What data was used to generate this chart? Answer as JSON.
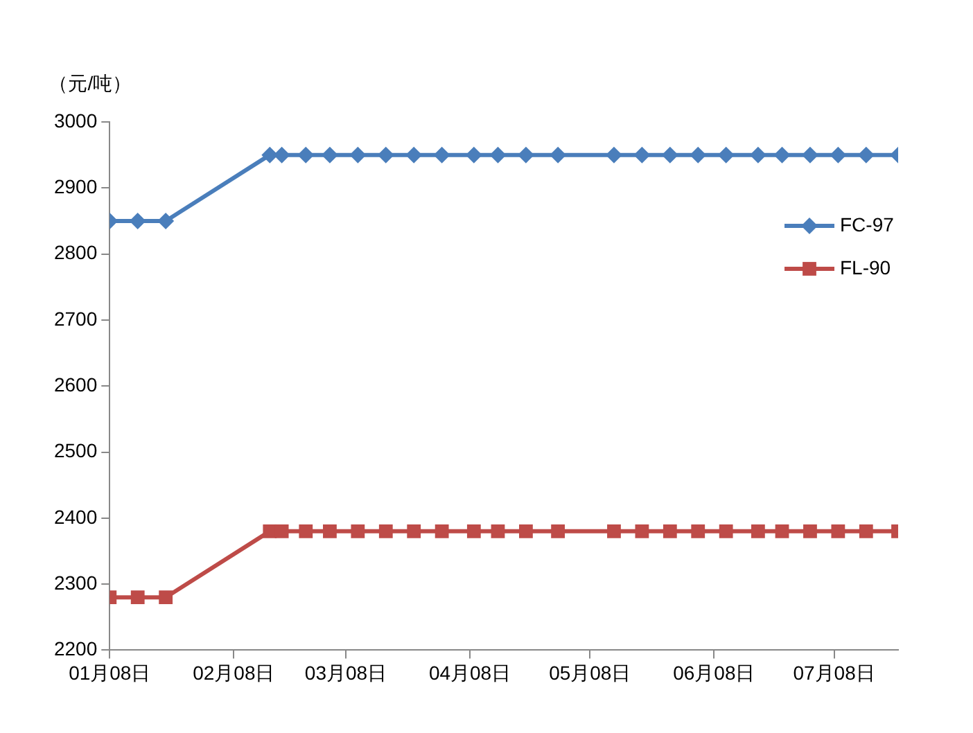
{
  "chart_data": {
    "type": "line",
    "ylabel": "（元/吨）",
    "x": [
      "--01-08",
      "--01-15",
      "--01-22",
      "--02-17",
      "--02-20",
      "--02-26",
      "--03-04",
      "--03-11",
      "--03-18",
      "--03-25",
      "--04-01",
      "--04-09",
      "--04-15",
      "--04-22",
      "--04-30",
      "--05-14",
      "--05-21",
      "--05-28",
      "--06-04",
      "--06-11",
      "--06-19",
      "--06-25",
      "--07-02",
      "--07-09",
      "--07-16",
      "--07-24"
    ],
    "series": [
      {
        "name": "FC-97",
        "color": "#4a7ebb",
        "marker": "diamond",
        "values": [
          2850,
          2850,
          2850,
          2950,
          2950,
          2950,
          2950,
          2950,
          2950,
          2950,
          2950,
          2950,
          2950,
          2950,
          2950,
          2950,
          2950,
          2950,
          2950,
          2950,
          2950,
          2950,
          2950,
          2950,
          2950,
          2950
        ]
      },
      {
        "name": "FL-90",
        "color": "#be4b48",
        "marker": "square",
        "values": [
          2280,
          2280,
          2280,
          2380,
          2380,
          2380,
          2380,
          2380,
          2380,
          2380,
          2380,
          2380,
          2380,
          2380,
          2380,
          2380,
          2380,
          2380,
          2380,
          2380,
          2380,
          2380,
          2380,
          2380,
          2380,
          2380
        ]
      }
    ],
    "xlim": [
      "--01-08",
      "--07-24"
    ],
    "xticks": [
      {
        "value": "--01-08",
        "label": "01月08日"
      },
      {
        "value": "--02-08",
        "label": "02月08日"
      },
      {
        "value": "--03-08",
        "label": "03月08日"
      },
      {
        "value": "--04-08",
        "label": "04月08日"
      },
      {
        "value": "--05-08",
        "label": "05月08日"
      },
      {
        "value": "--06-08",
        "label": "06月08日"
      },
      {
        "value": "--07-08",
        "label": "07月08日"
      }
    ],
    "ylim": [
      2200,
      3000
    ],
    "yticks": [
      2200,
      2300,
      2400,
      2500,
      2600,
      2700,
      2800,
      2900,
      3000
    ],
    "grid": false,
    "legend": "right",
    "line_style": "solid"
  }
}
